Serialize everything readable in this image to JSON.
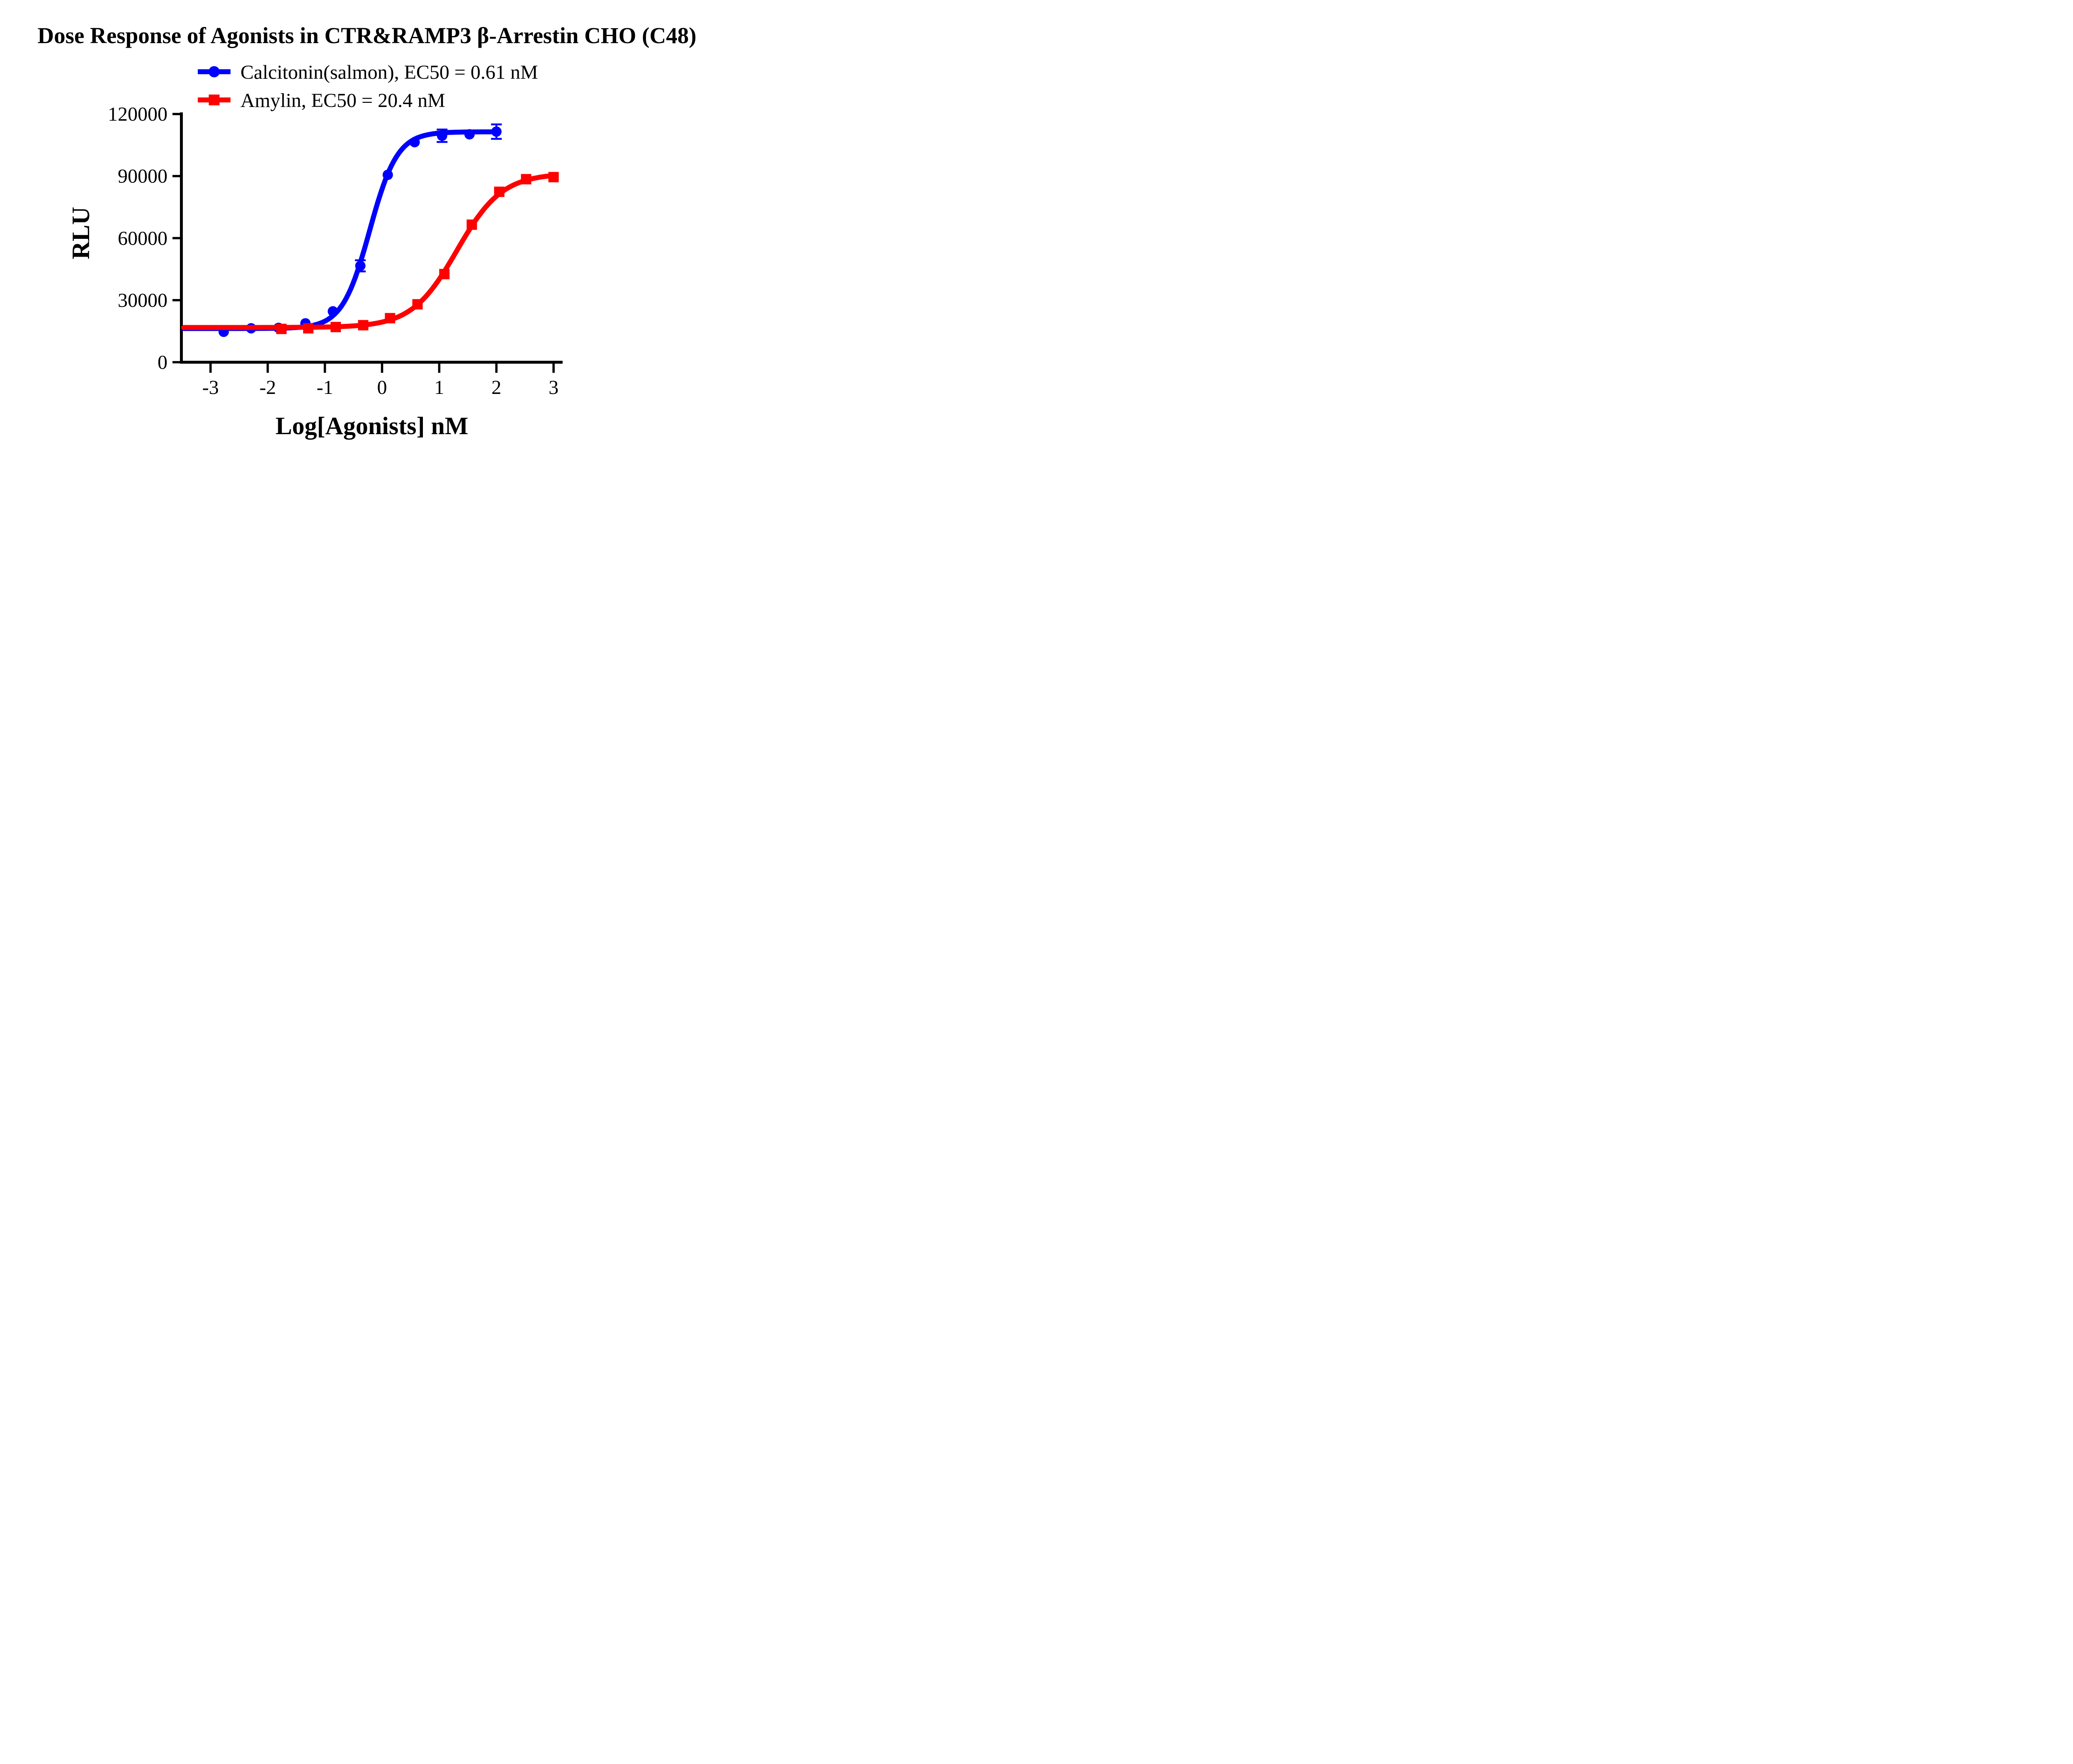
{
  "title": "Dose Response of Agonists in CTR&RAMP3 β-Arrestin CHO (C48)",
  "axes": {
    "x_label": "Log[Agonists] nM",
    "y_label": "RLU"
  },
  "chart_data": {
    "type": "scatter",
    "title": "Dose Response of Agonists in CTR&RAMP3 β-Arrestin CHO (C48)",
    "xlabel": "Log[Agonists] nM",
    "ylabel": "RLU",
    "xlim": [
      -3.47,
      3.3
    ],
    "ylim": [
      0,
      120000
    ],
    "x_ticks": [
      -3,
      -2,
      -1,
      0,
      1,
      2,
      3
    ],
    "y_ticks": [
      0,
      30000,
      60000,
      90000,
      120000
    ],
    "grid": false,
    "legend_position": "top-center",
    "background": "#ffffff",
    "axis_color": "#000000",
    "series": [
      {
        "name": "Calcitonin(salmon)",
        "label": "Calcitonin(salmon), EC50 = 0.61 nM",
        "ec50_nM": 0.61,
        "color": "#0000ff",
        "marker": "circle",
        "x": [
          -2.77,
          -2.29,
          -1.81,
          -1.34,
          -0.86,
          -0.38,
          0.1,
          0.57,
          1.05,
          1.53,
          2.0
        ],
        "y": [
          14700,
          16400,
          16600,
          18800,
          24600,
          46600,
          90600,
          106400,
          109500,
          110200,
          111500
        ],
        "y_err": [
          0,
          0,
          0,
          0,
          0,
          2700,
          0,
          0,
          3000,
          0,
          3500
        ],
        "fit": {
          "model": "4PL",
          "bottom": 16300,
          "top": 111400,
          "log_ec50": -0.215,
          "hill_slope": 1.8,
          "x_start": -3.47,
          "x_end": 2.0
        }
      },
      {
        "name": "Amylin",
        "label": "Amylin, EC50 = 20.4 nM",
        "ec50_nM": 20.4,
        "color": "#ff0000",
        "marker": "square",
        "x": [
          -1.76,
          -1.29,
          -0.81,
          -0.33,
          0.14,
          0.62,
          1.09,
          1.57,
          2.05,
          2.52,
          3.0
        ],
        "y": [
          16100,
          16400,
          17000,
          17900,
          21300,
          28000,
          42600,
          66500,
          82400,
          88500,
          89500
        ],
        "y_err": [
          0,
          0,
          0,
          0,
          0,
          0,
          0,
          0,
          0,
          0,
          0
        ],
        "fit": {
          "model": "4PL",
          "bottom": 16800,
          "top": 91300,
          "log_ec50": 1.31,
          "hill_slope": 1.1,
          "x_start": -3.47,
          "x_end": 3.0
        }
      }
    ]
  }
}
